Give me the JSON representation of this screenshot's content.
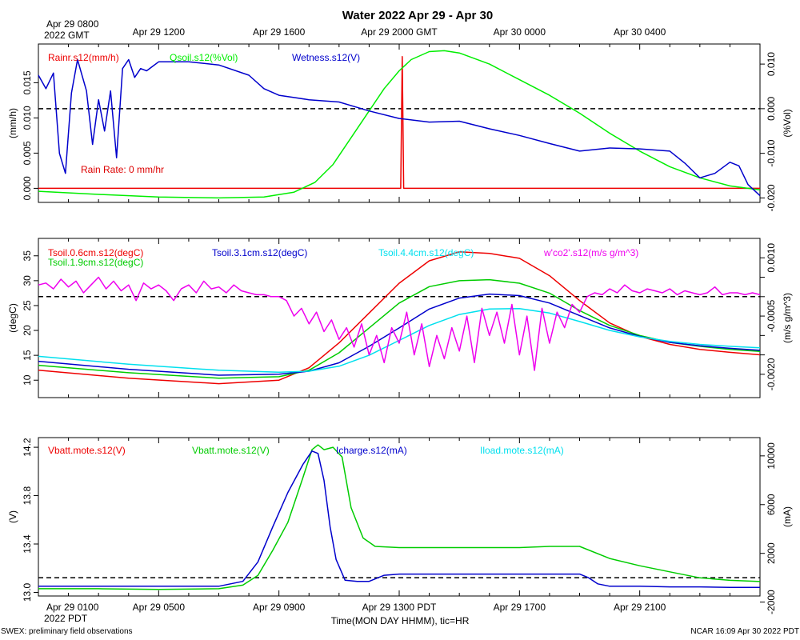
{
  "title": "Water 2022 Apr 29 - Apr 30",
  "top_time_axis": {
    "start_label": [
      "Apr 29 0800",
      "2022 GMT"
    ],
    "ticks": [
      {
        "hour": 4,
        "label": "Apr 29 1200"
      },
      {
        "hour": 8,
        "label": "Apr 29 1600"
      },
      {
        "hour": 12,
        "label": "Apr 29 2000 GMT"
      },
      {
        "hour": 16,
        "label": "Apr 30 0000"
      },
      {
        "hour": 20,
        "label": "Apr 30 0400"
      }
    ]
  },
  "bottom_time_axis": {
    "start_label": [
      "Apr 29 0100",
      "2022 PDT"
    ],
    "ticks": [
      {
        "hour": 4,
        "label": "Apr 29 0500"
      },
      {
        "hour": 8,
        "label": "Apr 29 0900"
      },
      {
        "hour": 12,
        "label": "Apr 29 1300 PDT"
      },
      {
        "hour": 16,
        "label": "Apr 29 1700"
      },
      {
        "hour": 20,
        "label": "Apr 29 2100"
      }
    ],
    "xlabel": "Time(MON DAY HHMM), tic=HR"
  },
  "footer": {
    "left": "SWEX: preliminary field observations",
    "right": "NCAR 16:09 Apr 30 2022 PDT"
  },
  "chart_data": [
    {
      "type": "line",
      "id": "water",
      "x_hours_range": [
        0,
        24
      ],
      "left_axis": {
        "label": "(mm/h)",
        "range": [
          -0.002,
          0.0205
        ],
        "ticks": [
          0.0,
          0.005,
          0.01,
          0.015
        ],
        "tick_labels": [
          "0.000",
          "0.005",
          "0.010",
          "0.015"
        ]
      },
      "right_axis": {
        "label": "(%Vol)",
        "range": [
          -0.021,
          0.0145
        ],
        "ticks": [
          -0.02,
          -0.01,
          0.0,
          0.01
        ],
        "tick_labels": [
          "-0.020",
          "-0.010",
          "0.000",
          "0.010"
        ]
      },
      "reference_line": {
        "axis": "right",
        "value": 0.0
      },
      "annotation": {
        "text": "Rain Rate: 0 mm/hr",
        "color": "#dd0000"
      },
      "series": [
        {
          "name": "Rainr.s12(mm/h)",
          "color": "#ee0000",
          "axis": "left",
          "x": [
            0,
            12.0,
            12.05,
            12.1,
            12.15,
            12.2,
            24
          ],
          "y": [
            0.0,
            0.0,
            0.0,
            0.0187,
            0.0,
            0.0,
            0.0
          ]
        },
        {
          "name": "Qsoil.s12(%Vol)",
          "color": "#00ee00",
          "axis": "right",
          "x": [
            0,
            2,
            4,
            6,
            7.5,
            8.5,
            9.2,
            9.8,
            10.4,
            11,
            11.5,
            12,
            12.4,
            13,
            13.5,
            14,
            15,
            16,
            17,
            18,
            19,
            20,
            21,
            22,
            23,
            24
          ],
          "y": [
            -0.0185,
            -0.0192,
            -0.0198,
            -0.02,
            -0.0198,
            -0.0187,
            -0.0165,
            -0.0125,
            -0.0065,
            -0.0005,
            0.0045,
            0.0085,
            0.011,
            0.0128,
            0.013,
            0.0125,
            0.01,
            0.0065,
            0.003,
            -0.001,
            -0.0055,
            -0.0095,
            -0.013,
            -0.0155,
            -0.0173,
            -0.0182
          ]
        },
        {
          "name": "Wetness.s12(V)",
          "color": "#0000cc",
          "axis": "right",
          "x": [
            0,
            0.25,
            0.5,
            0.7,
            0.9,
            1.1,
            1.3,
            1.6,
            1.8,
            2.0,
            2.2,
            2.4,
            2.6,
            2.8,
            3.0,
            3.2,
            3.4,
            3.6,
            3.8,
            4.0,
            4.3,
            5,
            6,
            7,
            7.5,
            8,
            8.5,
            9,
            10,
            11,
            12,
            13,
            14,
            15,
            16,
            17,
            18,
            19,
            20,
            21,
            21.5,
            22,
            22.5,
            23,
            23.3,
            23.6,
            24
          ],
          "y": [
            0.0075,
            0.0045,
            0.008,
            -0.01,
            -0.0145,
            0.0035,
            0.011,
            0.004,
            -0.008,
            0.002,
            -0.005,
            0.004,
            -0.011,
            0.009,
            0.011,
            0.007,
            0.009,
            0.0085,
            0.0095,
            0.0105,
            0.0105,
            0.0105,
            0.0098,
            0.0075,
            0.0045,
            0.003,
            0.0025,
            0.002,
            0.0015,
            -0.0005,
            -0.0022,
            -0.003,
            -0.0028,
            -0.0045,
            -0.006,
            -0.0078,
            -0.0095,
            -0.0088,
            -0.009,
            -0.0095,
            -0.0122,
            -0.0155,
            -0.0145,
            -0.012,
            -0.0128,
            -0.017,
            -0.0195
          ]
        }
      ]
    },
    {
      "type": "line",
      "id": "soil-temperature",
      "x_hours_range": [
        0,
        24
      ],
      "left_axis": {
        "label": "(degC)",
        "range": [
          6.5,
          38.5
        ],
        "ticks": [
          10,
          15,
          20,
          25,
          30,
          35
        ],
        "tick_labels": [
          "10",
          "15",
          "20",
          "25",
          "30",
          "35"
        ]
      },
      "right_axis": {
        "label": "(m/s g/m^3)",
        "range": [
          -0.0026,
          0.0015
        ],
        "ticks": [
          -0.002,
          -0.0015,
          -0.001,
          -0.0005,
          0.0,
          0.0005,
          0.001
        ],
        "tick_labels": [
          "-0.0020",
          "",
          "",
          "-0.0005",
          "",
          "",
          "0.0010"
        ]
      },
      "reference_line": {
        "axis": "right",
        "value": 0.0
      },
      "series": [
        {
          "name": "Tsoil.0.6cm.s12(degC)",
          "color": "#ee0000",
          "axis": "left",
          "x": [
            0,
            3,
            6,
            8,
            9,
            10,
            11,
            12,
            13,
            14,
            15,
            16,
            17,
            18,
            19,
            20,
            21,
            22,
            23,
            24
          ],
          "y": [
            12.0,
            10.4,
            9.3,
            10.0,
            12.5,
            17.5,
            23.5,
            29.5,
            34.0,
            35.8,
            35.5,
            34.5,
            31.0,
            26.0,
            21.5,
            18.8,
            17.2,
            16.2,
            15.6,
            15.1
          ]
        },
        {
          "name": "Tsoil.1.9cm.s12(degC)",
          "color": "#00cc00",
          "axis": "left",
          "x": [
            0,
            3,
            6,
            8,
            9,
            10,
            11,
            12,
            13,
            14,
            15,
            16,
            17,
            18,
            19,
            20,
            21,
            22,
            23,
            24
          ],
          "y": [
            13.0,
            11.5,
            10.4,
            10.7,
            12.0,
            15.5,
            20.5,
            25.5,
            28.8,
            30.0,
            30.2,
            29.5,
            27.5,
            24.0,
            21.0,
            19.0,
            17.6,
            16.8,
            16.2,
            15.8
          ]
        },
        {
          "name": "Tsoil.3.1cm.s12(degC)",
          "color": "#0000cc",
          "axis": "left",
          "x": [
            0,
            3,
            6,
            8,
            9,
            10,
            11,
            12,
            13,
            14,
            15,
            16,
            17,
            18,
            19,
            20,
            21,
            22,
            23,
            24
          ],
          "y": [
            13.8,
            12.2,
            11.0,
            11.2,
            11.8,
            13.5,
            16.8,
            20.5,
            24.3,
            26.5,
            27.3,
            27.0,
            25.5,
            23.0,
            20.5,
            18.8,
            17.6,
            16.9,
            16.4,
            16.0
          ]
        },
        {
          "name": "Tsoil.4.4cm.s12(degC)",
          "color": "#00e0ee",
          "axis": "left",
          "x": [
            0,
            3,
            6,
            8,
            9,
            10,
            11,
            12,
            13,
            14,
            15,
            16,
            17,
            18,
            19,
            20,
            21,
            22,
            23,
            24
          ],
          "y": [
            14.8,
            13.2,
            12.0,
            11.6,
            11.8,
            12.8,
            15.0,
            18.0,
            21.0,
            23.2,
            24.3,
            24.4,
            23.5,
            21.8,
            20.0,
            18.7,
            17.8,
            17.2,
            16.8,
            16.5
          ]
        },
        {
          "name": "w'co2'.s12(m/s g/m^3)",
          "color": "#ee00ee",
          "axis": "right",
          "x": [
            0.0,
            0.25,
            0.5,
            0.75,
            1.0,
            1.25,
            1.5,
            1.75,
            2.0,
            2.25,
            2.5,
            2.75,
            3.0,
            3.25,
            3.5,
            3.75,
            4.0,
            4.25,
            4.5,
            4.75,
            5.0,
            5.25,
            5.5,
            5.75,
            6.0,
            6.25,
            6.5,
            6.75,
            7.0,
            7.25,
            7.5,
            7.75,
            8.0,
            8.25,
            8.5,
            8.75,
            9.0,
            9.25,
            9.5,
            9.75,
            10.0,
            10.25,
            10.5,
            10.75,
            11.0,
            11.25,
            11.5,
            11.75,
            12.0,
            12.25,
            12.5,
            12.75,
            13.0,
            13.25,
            13.5,
            13.75,
            14.0,
            14.25,
            14.5,
            14.75,
            15.0,
            15.25,
            15.5,
            15.75,
            16.0,
            16.25,
            16.5,
            16.75,
            17.0,
            17.25,
            17.5,
            17.75,
            18.0,
            18.25,
            18.5,
            18.75,
            19.0,
            19.25,
            19.5,
            19.75,
            20.0,
            20.25,
            20.5,
            20.75,
            21.0,
            21.25,
            21.5,
            21.75,
            22.0,
            22.25,
            22.5,
            22.75,
            23.0,
            23.25,
            23.5,
            23.75,
            24.0
          ],
          "y": [
            0.0003,
            0.00035,
            0.0002,
            0.00045,
            0.00025,
            0.0004,
            0.0001,
            0.0003,
            0.0005,
            0.0002,
            0.0004,
            0.00015,
            0.0003,
            -0.0001,
            0.00035,
            0.0002,
            0.0003,
            0.00015,
            -0.0001,
            0.0002,
            0.0003,
            0.0001,
            0.0004,
            0.0002,
            0.00025,
            0.0001,
            0.0003,
            0.00015,
            0.0001,
            5e-05,
            5e-05,
            0.0,
            0.0,
            -0.0001,
            -0.0005,
            -0.0003,
            -0.0007,
            -0.0004,
            -0.0009,
            -0.0006,
            -0.0011,
            -0.0008,
            -0.0013,
            -0.0007,
            -0.0015,
            -0.001,
            -0.0017,
            -0.0008,
            -0.0012,
            -0.0004,
            -0.0015,
            -0.0007,
            -0.0018,
            -0.001,
            -0.0016,
            -0.0008,
            -0.0014,
            -0.0005,
            -0.0017,
            -0.0003,
            -0.001,
            -0.0004,
            -0.0012,
            -0.0002,
            -0.0015,
            -0.0005,
            -0.0019,
            -0.0003,
            -0.0012,
            -0.0004,
            -0.0008,
            -0.0002,
            -0.0004,
            0.0,
            0.0001,
            5e-05,
            0.0002,
            0.0001,
            0.0003,
            0.00015,
            0.0001,
            0.0002,
            0.00015,
            0.0001,
            0.0002,
            5e-05,
            0.00015,
            0.0001,
            5e-05,
            0.0001,
            0.00025,
            5e-05,
            0.0001,
            0.0001,
            5e-05,
            0.0001,
            5e-05
          ]
        }
      ]
    },
    {
      "type": "line",
      "id": "power",
      "x_hours_range": [
        0,
        24
      ],
      "left_axis": {
        "label": "(V)",
        "range": [
          12.97,
          14.28
        ],
        "ticks": [
          13.0,
          13.4,
          13.8,
          14.2
        ],
        "tick_labels": [
          "13.0",
          "13.4",
          "13.8",
          "14.2"
        ]
      },
      "right_axis": {
        "label": "(mA)",
        "range": [
          -1500,
          11500
        ],
        "ticks": [
          -2000,
          2000,
          6000,
          10000
        ],
        "tick_labels": [
          "-2000",
          "2000",
          "6000",
          "10000"
        ]
      },
      "reference_line": {
        "axis": "right",
        "value": 0
      },
      "series": [
        {
          "name": "Vbatt.mote.s12(V)",
          "color": "#ee0000",
          "axis": "left",
          "x": [],
          "y": []
        },
        {
          "name": "Vbatt.mote.s12(V)",
          "color": "#00cc00",
          "axis": "left",
          "x": [
            0,
            2,
            4,
            6,
            6.8,
            7.3,
            7.8,
            8.3,
            8.8,
            9.1,
            9.3,
            9.5,
            9.8,
            10.1,
            10.4,
            10.8,
            11.2,
            12,
            14,
            16,
            17,
            18,
            19,
            20,
            21,
            22,
            23,
            24
          ],
          "y": [
            13.03,
            13.03,
            13.025,
            13.03,
            13.06,
            13.14,
            13.35,
            13.58,
            13.95,
            14.18,
            14.22,
            14.18,
            14.2,
            14.12,
            13.7,
            13.45,
            13.38,
            13.37,
            13.37,
            13.37,
            13.38,
            13.38,
            13.28,
            13.22,
            13.17,
            13.12,
            13.1,
            13.09
          ]
        },
        {
          "name": "Icharge.s12(mA)",
          "color": "#0000cc",
          "axis": "right",
          "x": [
            0,
            2,
            4,
            6,
            6.8,
            7.3,
            7.8,
            8.3,
            8.8,
            9.1,
            9.3,
            9.5,
            9.7,
            9.9,
            10.2,
            10.6,
            11,
            11.5,
            12,
            14,
            16,
            17,
            18,
            18.3,
            18.6,
            19,
            20,
            21,
            22,
            23,
            24
          ],
          "y": [
            -700,
            -700,
            -700,
            -700,
            -300,
            1300,
            4200,
            7000,
            9300,
            10400,
            10200,
            8000,
            4200,
            1500,
            -200,
            -300,
            -300,
            200,
            300,
            300,
            300,
            300,
            300,
            0,
            -500,
            -700,
            -700,
            -750,
            -750,
            -800,
            -800
          ]
        },
        {
          "name": "Iload.mote.s12(mA)",
          "color": "#00e0ee",
          "axis": "right",
          "x": [],
          "y": []
        }
      ],
      "legend": [
        "Vbatt.mote.s12(V)",
        "Vbatt.mote.s12(V)",
        "Icharge.s12(mA)",
        "Iload.mote.s12(mA)"
      ]
    }
  ]
}
